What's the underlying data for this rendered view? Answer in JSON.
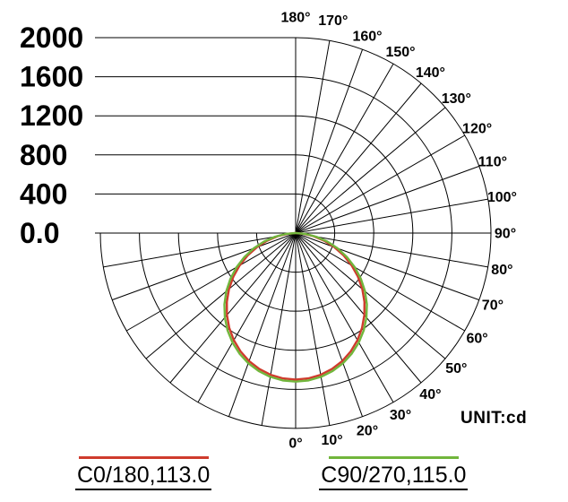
{
  "unit_label": "UNIT:cd",
  "legend": [
    {
      "label": "C0/180,113.0",
      "color": "#cf3b2d"
    },
    {
      "label": "C90/270,115.0",
      "color": "#71b63c"
    }
  ],
  "chart_data": {
    "type": "line",
    "coordinate_system": "polar",
    "description": "Photometric luminous intensity distribution curve, 0° at nadir (bottom), 180° at zenith (top)",
    "unit": "cd",
    "r_max": 2000,
    "ring_step": 400,
    "angle_step_deg": 10,
    "radial_ticks": [
      {
        "label": "2000",
        "value": 2000
      },
      {
        "label": "1600",
        "value": 1600
      },
      {
        "label": "1200",
        "value": 1200
      },
      {
        "label": "800",
        "value": 800
      },
      {
        "label": "400",
        "value": 400
      },
      {
        "label": "0.0",
        "value": 0
      }
    ],
    "angle_labels": [
      "0°",
      "10°",
      "20°",
      "30°",
      "40°",
      "50°",
      "60°",
      "70°",
      "80°",
      "90°",
      "100°",
      "110°",
      "120°",
      "130°",
      "140°",
      "150°",
      "160°",
      "170°",
      "180°"
    ],
    "series": [
      {
        "name": "C0/180",
        "legend_label": "C0/180,113.0",
        "beam_value": 113.0,
        "color": "#cf3b2d",
        "symmetric_mirror": true,
        "angles_deg": [
          0,
          5,
          10,
          15,
          20,
          25,
          30,
          35,
          40,
          45,
          50,
          55,
          60,
          65,
          70,
          75,
          80,
          85,
          90
        ],
        "values_cd": [
          1500,
          1493,
          1473,
          1440,
          1394,
          1336,
          1266,
          1185,
          1095,
          997,
          891,
          778,
          662,
          543,
          423,
          304,
          190,
          84,
          3
        ]
      },
      {
        "name": "C90/270",
        "legend_label": "C90/270,115.0",
        "beam_value": 115.0,
        "color": "#71b63c",
        "symmetric_mirror": true,
        "angles_deg": [
          0,
          5,
          10,
          15,
          20,
          25,
          30,
          35,
          40,
          45,
          50,
          55,
          60,
          65,
          70,
          75,
          80,
          85,
          90
        ],
        "values_cd": [
          1520,
          1514,
          1494,
          1462,
          1418,
          1361,
          1294,
          1216,
          1128,
          1031,
          927,
          815,
          699,
          579,
          457,
          334,
          214,
          99,
          4
        ]
      }
    ]
  }
}
